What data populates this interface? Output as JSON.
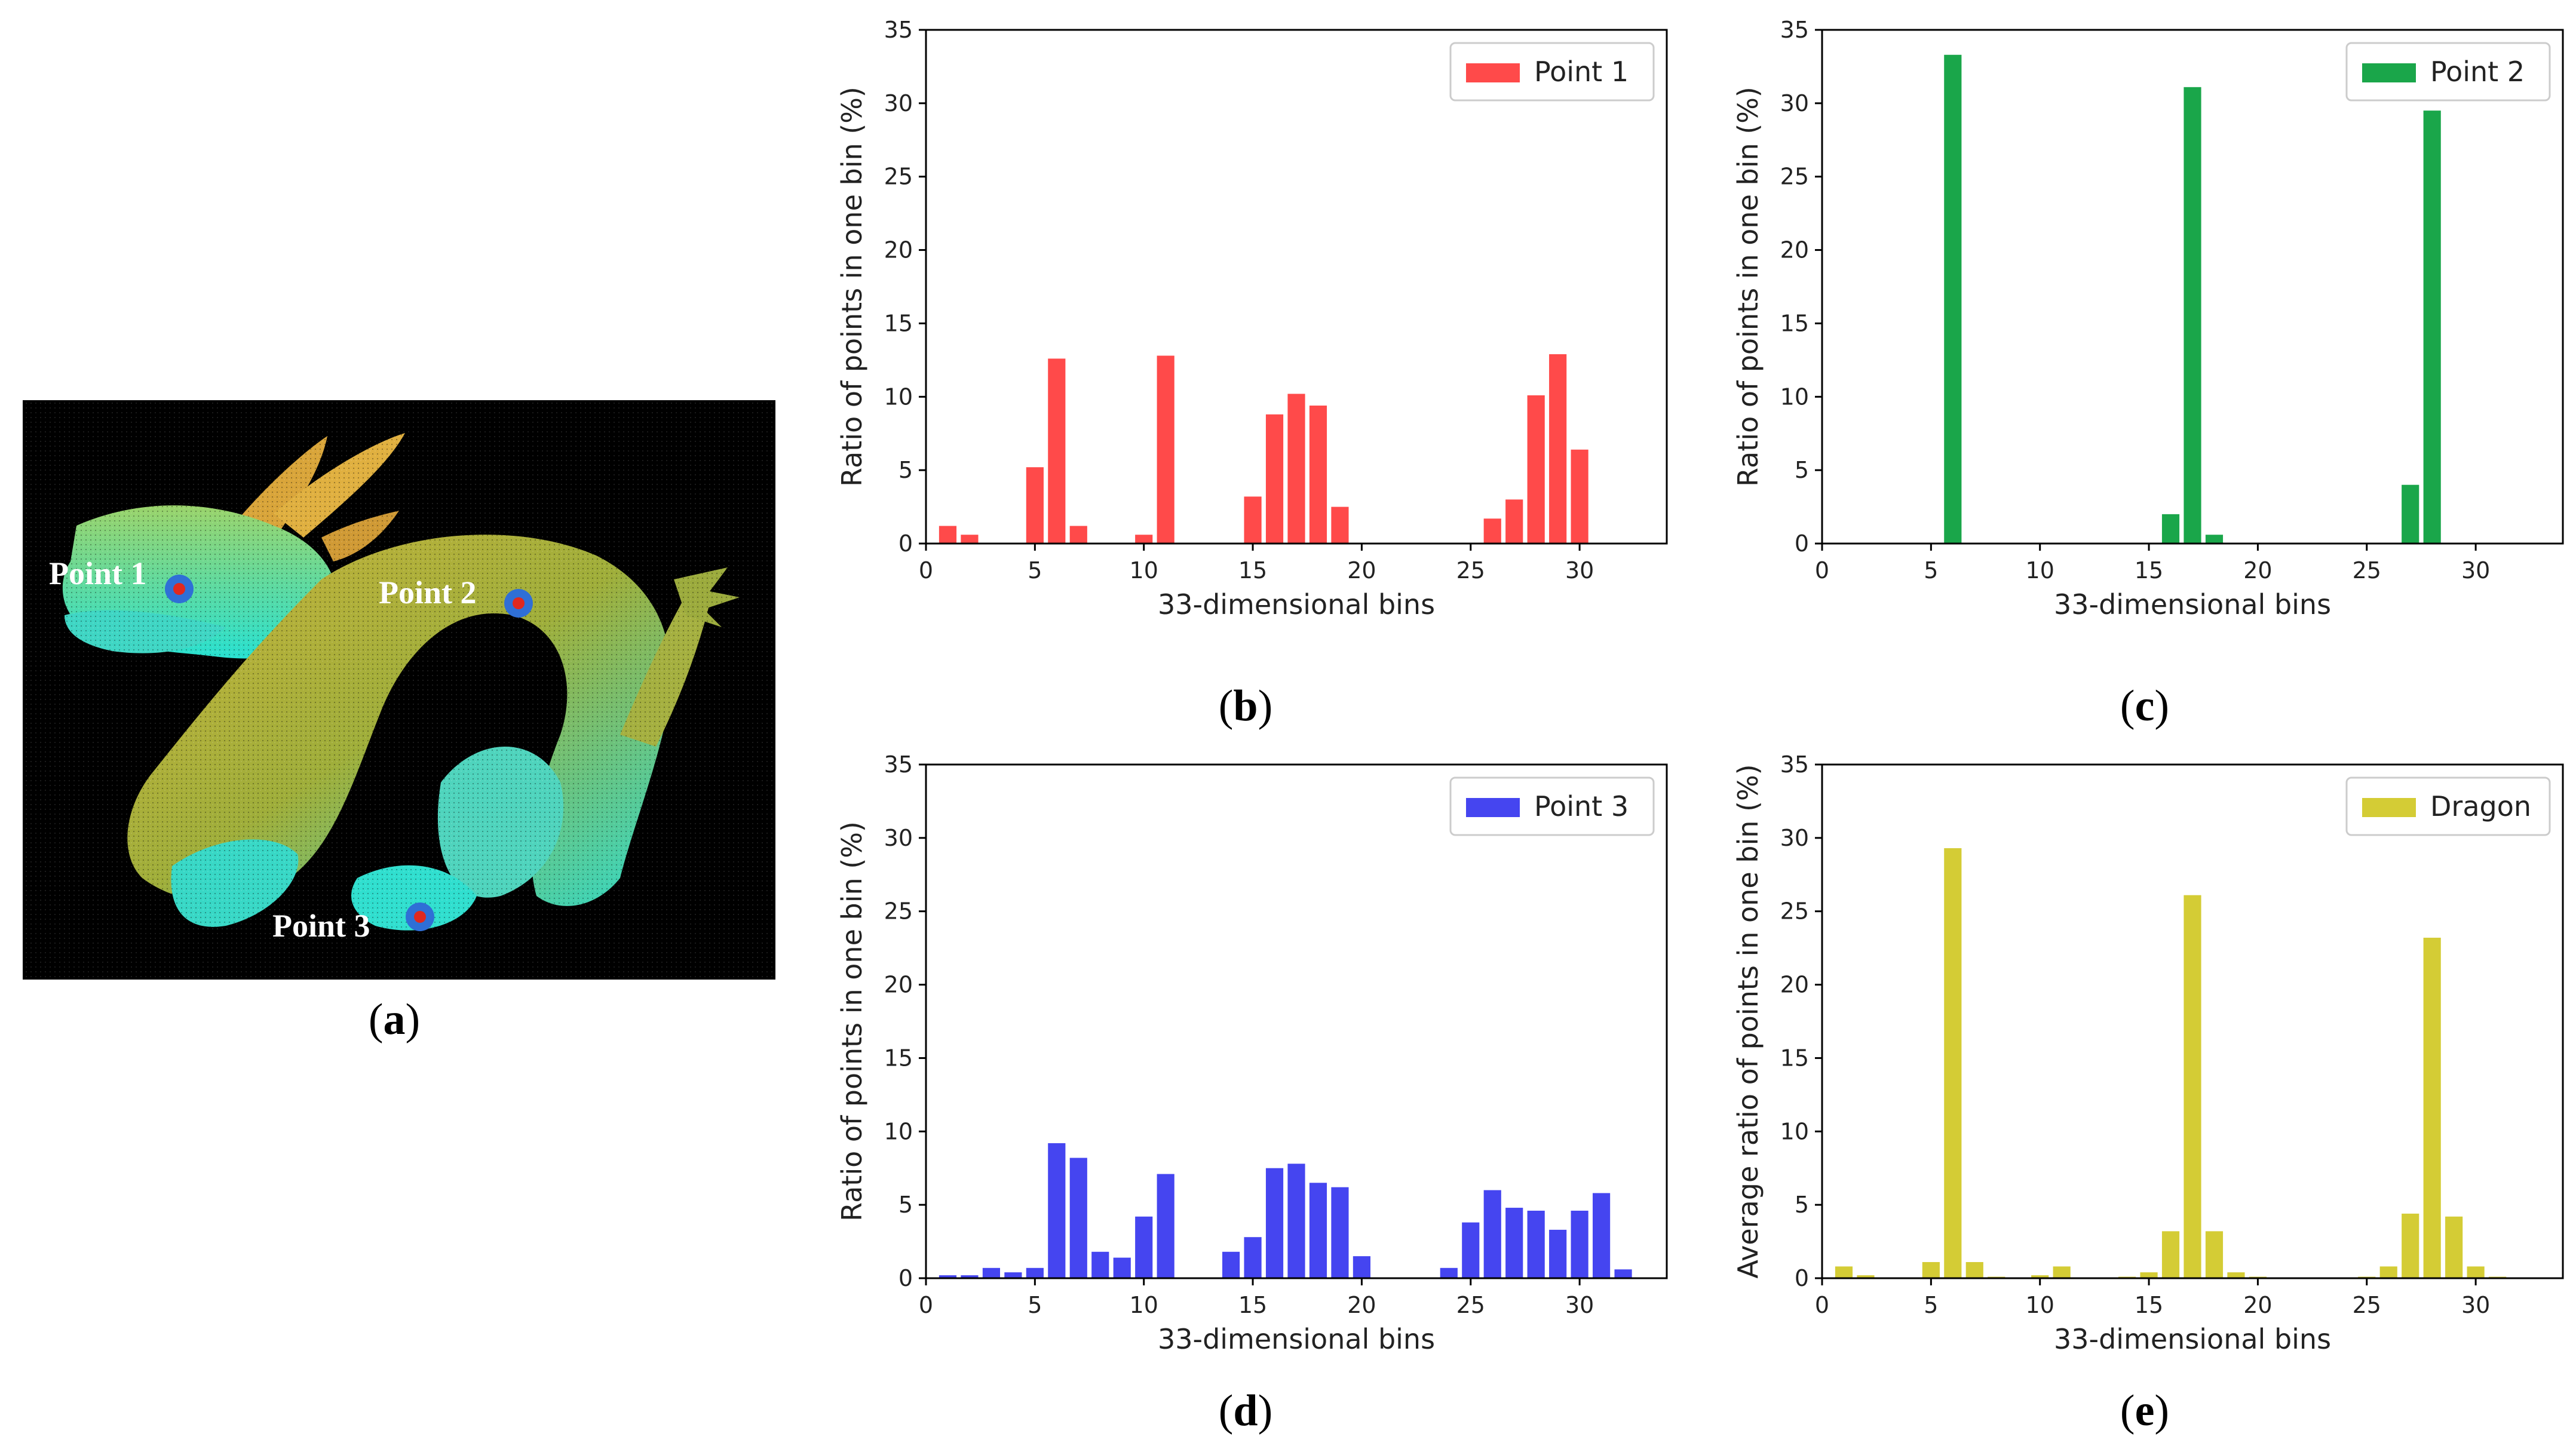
{
  "figure": {
    "panel_a": {
      "caption_open": "(",
      "caption_letter": "a",
      "caption_close": ")",
      "labels": [
        "Point 1",
        "Point 2",
        "Point 3"
      ],
      "marker_colors": {
        "ring": "#2f6fd6",
        "dot": "#e0281e"
      }
    }
  },
  "captions": {
    "b": "b",
    "c": "c",
    "d": "d",
    "e": "e"
  },
  "chart_data": [
    {
      "id": "b",
      "type": "bar",
      "color": "#ff4a4a",
      "legend": "Point 1",
      "xlabel": "33-dimensional bins",
      "ylabel": "Ratio of points in one bin (%)",
      "xlim": [
        0,
        34
      ],
      "ylim": [
        0,
        35
      ],
      "xticks": [
        0,
        5,
        10,
        15,
        20,
        25,
        30
      ],
      "yticks": [
        0,
        5,
        10,
        15,
        20,
        25,
        30,
        35
      ],
      "x": [
        0,
        1,
        2,
        3,
        4,
        5,
        6,
        7,
        8,
        9,
        10,
        11,
        12,
        13,
        14,
        15,
        16,
        17,
        18,
        19,
        20,
        21,
        22,
        23,
        24,
        25,
        26,
        27,
        28,
        29,
        30,
        31,
        32
      ],
      "values": [
        0,
        1.2,
        0.6,
        0,
        0,
        5.2,
        12.6,
        1.2,
        0,
        0,
        0.6,
        12.8,
        0,
        0,
        0,
        3.2,
        8.8,
        10.2,
        9.4,
        2.5,
        0,
        0,
        0,
        0,
        0,
        0,
        1.7,
        3.0,
        10.1,
        12.9,
        6.4,
        0,
        0
      ]
    },
    {
      "id": "c",
      "type": "bar",
      "color": "#1aa64a",
      "legend": "Point 2",
      "xlabel": "33-dimensional bins",
      "ylabel": "Ratio of points in one bin (%)",
      "xlim": [
        0,
        34
      ],
      "ylim": [
        0,
        35
      ],
      "xticks": [
        0,
        5,
        10,
        15,
        20,
        25,
        30
      ],
      "yticks": [
        0,
        5,
        10,
        15,
        20,
        25,
        30,
        35
      ],
      "x": [
        0,
        1,
        2,
        3,
        4,
        5,
        6,
        7,
        8,
        9,
        10,
        11,
        12,
        13,
        14,
        15,
        16,
        17,
        18,
        19,
        20,
        21,
        22,
        23,
        24,
        25,
        26,
        27,
        28,
        29,
        30,
        31,
        32
      ],
      "values": [
        0,
        0,
        0,
        0,
        0,
        0,
        33.3,
        0,
        0,
        0,
        0,
        0,
        0,
        0,
        0,
        0,
        2.0,
        31.1,
        0.6,
        0,
        0,
        0,
        0,
        0,
        0,
        0,
        0,
        4.0,
        29.5,
        0,
        0,
        0,
        0
      ]
    },
    {
      "id": "d",
      "type": "bar",
      "color": "#4545f0",
      "legend": "Point 3",
      "xlabel": "33-dimensional bins",
      "ylabel": "Ratio of points in one bin (%)",
      "xlim": [
        0,
        34
      ],
      "ylim": [
        0,
        35
      ],
      "xticks": [
        0,
        5,
        10,
        15,
        20,
        25,
        30
      ],
      "yticks": [
        0,
        5,
        10,
        15,
        20,
        25,
        30,
        35
      ],
      "x": [
        0,
        1,
        2,
        3,
        4,
        5,
        6,
        7,
        8,
        9,
        10,
        11,
        12,
        13,
        14,
        15,
        16,
        17,
        18,
        19,
        20,
        21,
        22,
        23,
        24,
        25,
        26,
        27,
        28,
        29,
        30,
        31,
        32
      ],
      "values": [
        0,
        0.2,
        0.2,
        0.7,
        0.4,
        0.7,
        9.2,
        8.2,
        1.8,
        1.4,
        4.2,
        7.1,
        0,
        0,
        1.8,
        2.8,
        7.5,
        7.8,
        6.5,
        6.2,
        1.5,
        0,
        0,
        0,
        0.7,
        3.8,
        6.0,
        4.8,
        4.6,
        3.3,
        4.6,
        5.8,
        0.6
      ]
    },
    {
      "id": "e",
      "type": "bar",
      "color": "#d4cc35",
      "legend": "Dragon",
      "xlabel": "33-dimensional bins",
      "ylabel": "Average ratio of points in one bin (%)",
      "xlim": [
        0,
        34
      ],
      "ylim": [
        0,
        35
      ],
      "xticks": [
        0,
        5,
        10,
        15,
        20,
        25,
        30
      ],
      "yticks": [
        0,
        5,
        10,
        15,
        20,
        25,
        30,
        35
      ],
      "x": [
        0,
        1,
        2,
        3,
        4,
        5,
        6,
        7,
        8,
        9,
        10,
        11,
        12,
        13,
        14,
        15,
        16,
        17,
        18,
        19,
        20,
        21,
        22,
        23,
        24,
        25,
        26,
        27,
        28,
        29,
        30,
        31,
        32
      ],
      "values": [
        0,
        0.8,
        0.2,
        0,
        0,
        1.1,
        29.3,
        1.1,
        0.1,
        0,
        0.2,
        0.8,
        0,
        0,
        0.1,
        0.4,
        3.2,
        26.1,
        3.2,
        0.4,
        0.1,
        0,
        0,
        0,
        0,
        0.1,
        0.8,
        4.4,
        23.2,
        4.2,
        0.8,
        0.1,
        0
      ]
    }
  ]
}
